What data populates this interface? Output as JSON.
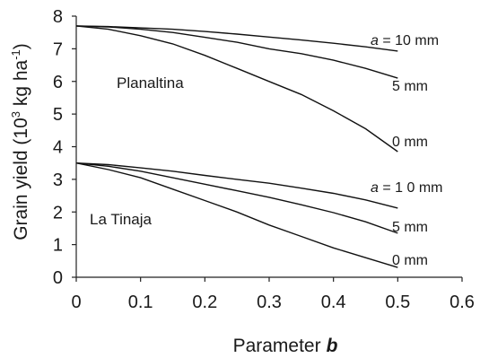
{
  "chart_data": {
    "type": "line",
    "xlabel": "Parameter",
    "xlabel_var": "b",
    "ylabel": "Grain yield (10",
    "ylabel_sup": "3",
    "ylabel_mid": " kg ha",
    "ylabel_sup2": "-1",
    "ylabel_end": ")",
    "xlim": [
      0,
      0.6
    ],
    "ylim": [
      0,
      8
    ],
    "xticks": [
      "0",
      "0.1",
      "0.2",
      "0.3",
      "0.4",
      "0.5",
      "0.6"
    ],
    "yticks": [
      "0",
      "1",
      "2",
      "3",
      "4",
      "5",
      "6",
      "7",
      "8"
    ],
    "groups": [
      {
        "name": "Planaltina",
        "series": [
          {
            "label_var": "a",
            "label": " = 10 mm",
            "x": [
              0,
              0.05,
              0.1,
              0.15,
              0.2,
              0.25,
              0.3,
              0.35,
              0.4,
              0.45,
              0.5
            ],
            "values": [
              7.7,
              7.68,
              7.64,
              7.6,
              7.53,
              7.45,
              7.36,
              7.27,
              7.17,
              7.06,
              6.93
            ]
          },
          {
            "label": "5 mm",
            "x": [
              0,
              0.05,
              0.1,
              0.15,
              0.2,
              0.25,
              0.3,
              0.35,
              0.4,
              0.45,
              0.5
            ],
            "values": [
              7.7,
              7.67,
              7.6,
              7.5,
              7.35,
              7.2,
              7.0,
              6.85,
              6.65,
              6.4,
              6.1
            ]
          },
          {
            "label": "0 mm",
            "x": [
              0,
              0.05,
              0.1,
              0.15,
              0.2,
              0.25,
              0.3,
              0.35,
              0.4,
              0.45,
              0.5
            ],
            "values": [
              7.7,
              7.6,
              7.4,
              7.15,
              6.8,
              6.4,
              6.0,
              5.6,
              5.1,
              4.55,
              3.85
            ]
          }
        ]
      },
      {
        "name": "La Tinaja",
        "series": [
          {
            "label_var": "a",
            "label": " = 1 0 mm",
            "x": [
              0,
              0.05,
              0.1,
              0.15,
              0.2,
              0.25,
              0.3,
              0.35,
              0.4,
              0.45,
              0.5
            ],
            "values": [
              3.5,
              3.45,
              3.35,
              3.25,
              3.12,
              3.0,
              2.88,
              2.73,
              2.57,
              2.37,
              2.12
            ]
          },
          {
            "label": "5 mm",
            "x": [
              0,
              0.05,
              0.1,
              0.15,
              0.2,
              0.25,
              0.3,
              0.35,
              0.4,
              0.45,
              0.5
            ],
            "values": [
              3.5,
              3.4,
              3.25,
              3.05,
              2.85,
              2.65,
              2.45,
              2.22,
              1.98,
              1.7,
              1.35
            ]
          },
          {
            "label": "0 mm",
            "x": [
              0,
              0.05,
              0.1,
              0.15,
              0.2,
              0.25,
              0.3,
              0.35,
              0.4,
              0.45,
              0.5
            ],
            "values": [
              3.5,
              3.3,
              3.05,
              2.7,
              2.35,
              2.0,
              1.6,
              1.25,
              0.9,
              0.6,
              0.3
            ]
          }
        ]
      }
    ]
  }
}
